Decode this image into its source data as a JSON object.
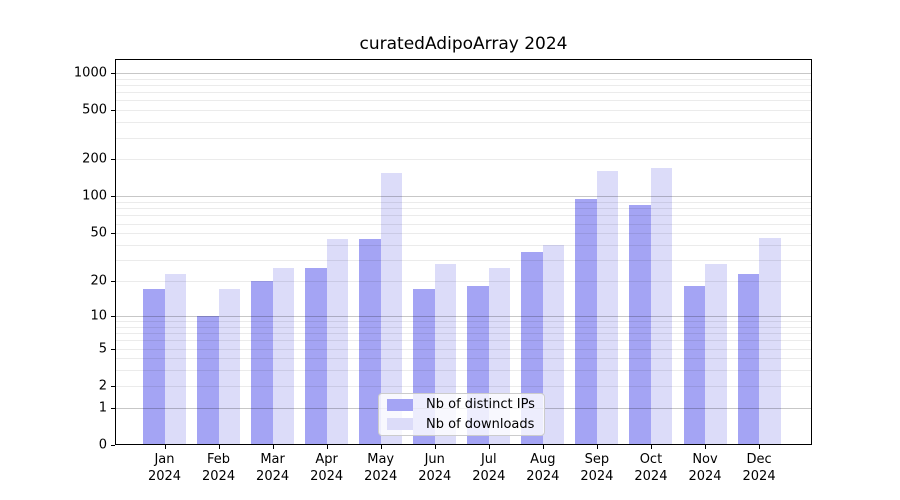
{
  "chart_data": {
    "type": "bar",
    "title": "curatedAdipoArray 2024",
    "categories": [
      "Jan",
      "Feb",
      "Mar",
      "Apr",
      "May",
      "Jun",
      "Jul",
      "Aug",
      "Sep",
      "Oct",
      "Nov",
      "Dec"
    ],
    "category_year": "2024",
    "series": [
      {
        "name": "Nb of distinct IPs",
        "color": "#a4a4f4",
        "values": [
          17,
          10,
          20,
          26,
          45,
          17,
          18,
          35,
          95,
          85,
          18,
          23
        ]
      },
      {
        "name": "Nb of downloads",
        "color": "#dcdcf9",
        "values": [
          23,
          17,
          26,
          45,
          155,
          28,
          26,
          40,
          160,
          170,
          28,
          46
        ]
      }
    ],
    "xlabel": "",
    "ylabel": "",
    "y_ticks": [
      0,
      1,
      2,
      5,
      10,
      20,
      50,
      100,
      200,
      500,
      1000
    ],
    "y_minor_gridlines": [
      2,
      3,
      4,
      5,
      6,
      7,
      8,
      9,
      20,
      30,
      40,
      50,
      60,
      70,
      80,
      90,
      200,
      300,
      400,
      500,
      600,
      700,
      800,
      900
    ],
    "y_major_gridlines": [
      1,
      10,
      100,
      1000
    ],
    "y_scale": "log10(value+1)",
    "ylim": [
      0,
      1300
    ],
    "grid": "on",
    "grid_above_bars": true,
    "legend_position": "lower center"
  },
  "colors": {
    "background": "#ffffff",
    "axis": "#000000",
    "bar_distinct_ips": "#a4a4f4",
    "bar_downloads": "#dcdcf9",
    "major_grid": "rgba(0,0,0,0.22)",
    "minor_grid": "rgba(0,0,0,0.08)",
    "legend_border": "#cccccc"
  }
}
